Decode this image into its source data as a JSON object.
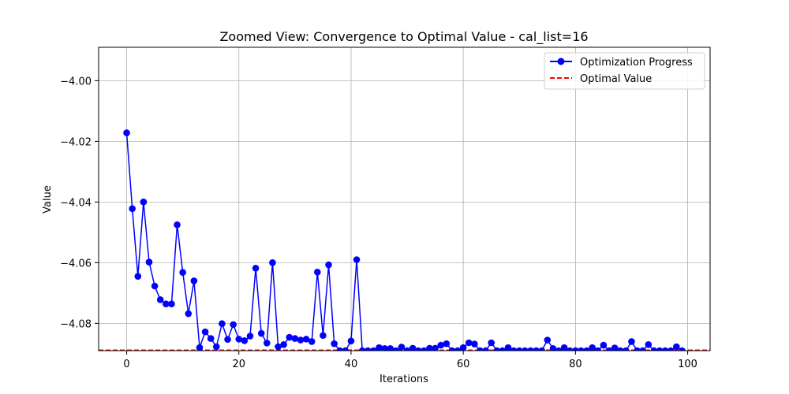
{
  "chart_data": {
    "type": "line",
    "title": "Zoomed View: Convergence to Optimal Value - cal_list=16",
    "xlabel": "Iterations",
    "ylabel": "Value",
    "xlim": [
      -5,
      104
    ],
    "ylim": [
      -4.089,
      -3.989
    ],
    "xticks": [
      0,
      20,
      40,
      60,
      80,
      100
    ],
    "yticks": [
      -4.08,
      -4.06,
      -4.04,
      -4.02,
      -4.0
    ],
    "ytick_labels": [
      "−4.08",
      "−4.06",
      "−4.04",
      "−4.02",
      "−4.00"
    ],
    "grid": true,
    "legend_position": "top-right",
    "series": [
      {
        "name": "Optimization Progress",
        "color": "#0000ff",
        "style": "solid line with circle markers",
        "x": [
          0,
          1,
          2,
          3,
          4,
          5,
          6,
          7,
          8,
          9,
          10,
          11,
          12,
          13,
          14,
          15,
          16,
          17,
          18,
          19,
          20,
          21,
          22,
          23,
          24,
          25,
          26,
          27,
          28,
          29,
          30,
          31,
          32,
          33,
          34,
          35,
          36,
          37,
          38,
          39,
          40,
          41,
          42,
          43,
          44,
          45,
          46,
          47,
          48,
          49,
          50,
          51,
          52,
          53,
          54,
          55,
          56,
          57,
          58,
          59,
          60,
          61,
          62,
          63,
          64,
          65,
          66,
          67,
          68,
          69,
          70,
          71,
          72,
          73,
          74,
          75,
          76,
          77,
          78,
          79,
          80,
          81,
          82,
          83,
          84,
          85,
          86,
          87,
          88,
          89,
          90,
          91,
          92,
          93,
          94,
          95,
          96,
          97,
          98,
          99
        ],
        "values": [
          -4.0172,
          -4.0422,
          -4.0645,
          -4.04,
          -4.0598,
          -4.0677,
          -4.0722,
          -4.0736,
          -4.0736,
          -4.0475,
          -4.0632,
          -4.0768,
          -4.066,
          -4.088,
          -4.0828,
          -4.085,
          -4.0877,
          -4.0801,
          -4.0853,
          -4.0804,
          -4.0852,
          -4.0857,
          -4.0842,
          -4.0618,
          -4.0833,
          -4.0865,
          -4.06,
          -4.0877,
          -4.087,
          -4.0846,
          -4.085,
          -4.0855,
          -4.0852,
          -4.086,
          -4.0631,
          -4.084,
          -4.0607,
          -4.0867,
          -4.089,
          -4.089,
          -4.0858,
          -4.059,
          -4.089,
          -4.089,
          -4.089,
          -4.088,
          -4.0883,
          -4.0883,
          -4.089,
          -4.0878,
          -4.089,
          -4.0882,
          -4.089,
          -4.089,
          -4.0882,
          -4.0882,
          -4.0872,
          -4.0867,
          -4.089,
          -4.089,
          -4.088,
          -4.0864,
          -4.0868,
          -4.089,
          -4.089,
          -4.0864,
          -4.089,
          -4.089,
          -4.088,
          -4.089,
          -4.089,
          -4.089,
          -4.089,
          -4.089,
          -4.089,
          -4.0855,
          -4.0883,
          -4.089,
          -4.088,
          -4.089,
          -4.089,
          -4.089,
          -4.089,
          -4.088,
          -4.089,
          -4.0872,
          -4.089,
          -4.0881,
          -4.089,
          -4.089,
          -4.086,
          -4.089,
          -4.089,
          -4.087,
          -4.089,
          -4.089,
          -4.089,
          -4.089,
          -4.0877,
          -4.089
        ]
      },
      {
        "name": "Optimal Value",
        "color": "#ff0000",
        "style": "dashed horizontal line",
        "y": -4.0888
      }
    ]
  }
}
